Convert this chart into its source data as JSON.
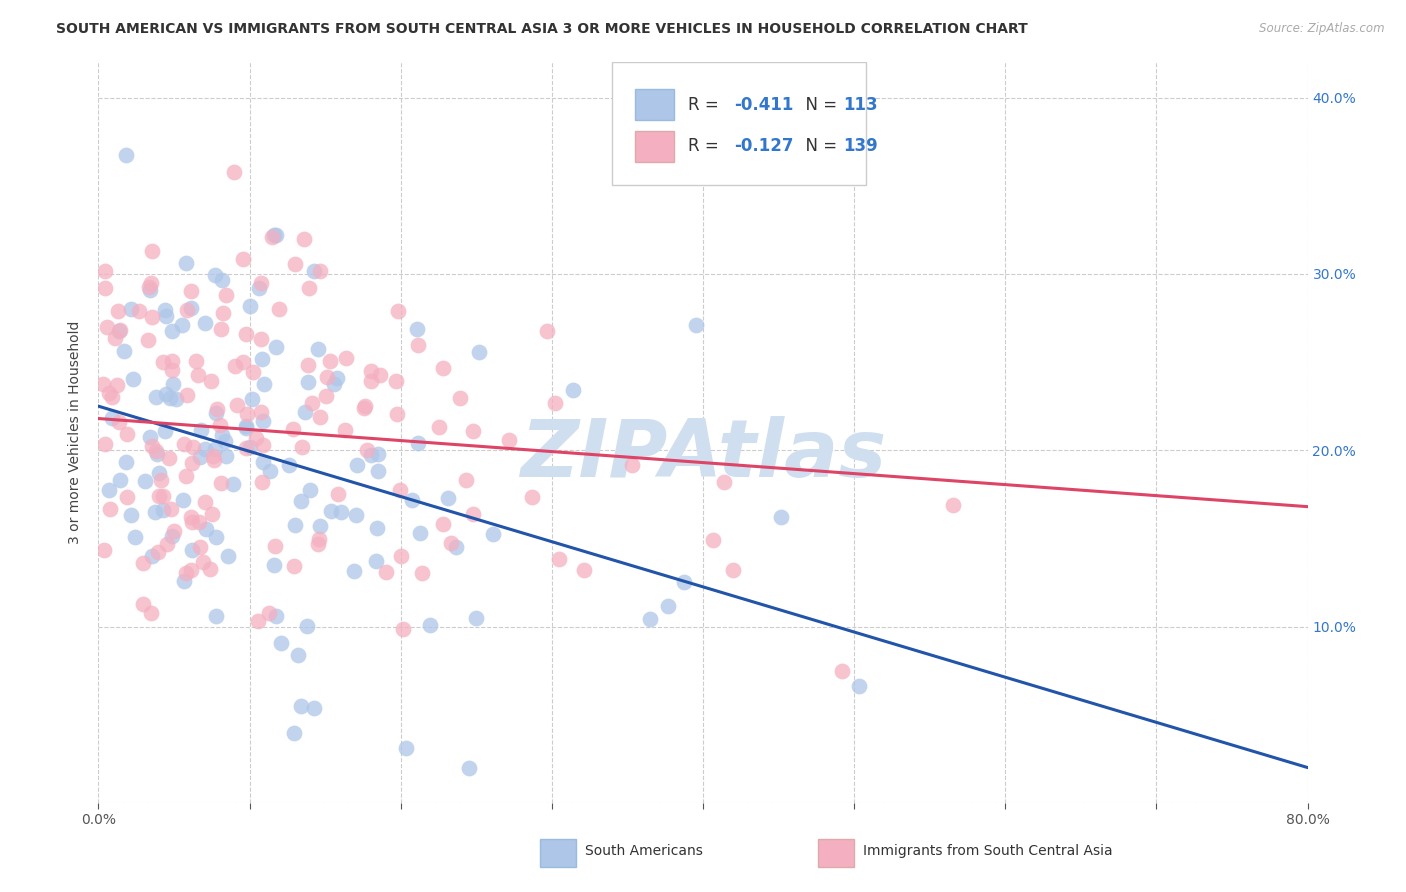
{
  "title": "SOUTH AMERICAN VS IMMIGRANTS FROM SOUTH CENTRAL ASIA 3 OR MORE VEHICLES IN HOUSEHOLD CORRELATION CHART",
  "source": "Source: ZipAtlas.com",
  "ylabel": "3 or more Vehicles in Household",
  "xmin": 0.0,
  "xmax": 0.8,
  "ymin": 0.0,
  "ymax": 0.42,
  "blue_R": -0.411,
  "blue_N": 113,
  "pink_R": -0.127,
  "pink_N": 139,
  "blue_color": "#aec6e8",
  "pink_color": "#f4afc0",
  "blue_line_color": "#2255aa",
  "pink_line_color": "#dd4466",
  "watermark": "ZIPAtlas",
  "watermark_color": "#d0dff0",
  "background_color": "#ffffff",
  "blue_line_x0": 0.0,
  "blue_line_y0": 0.225,
  "blue_line_x1": 0.8,
  "blue_line_y1": 0.02,
  "pink_line_x0": 0.0,
  "pink_line_y0": 0.218,
  "pink_line_x1": 0.8,
  "pink_line_y1": 0.168
}
